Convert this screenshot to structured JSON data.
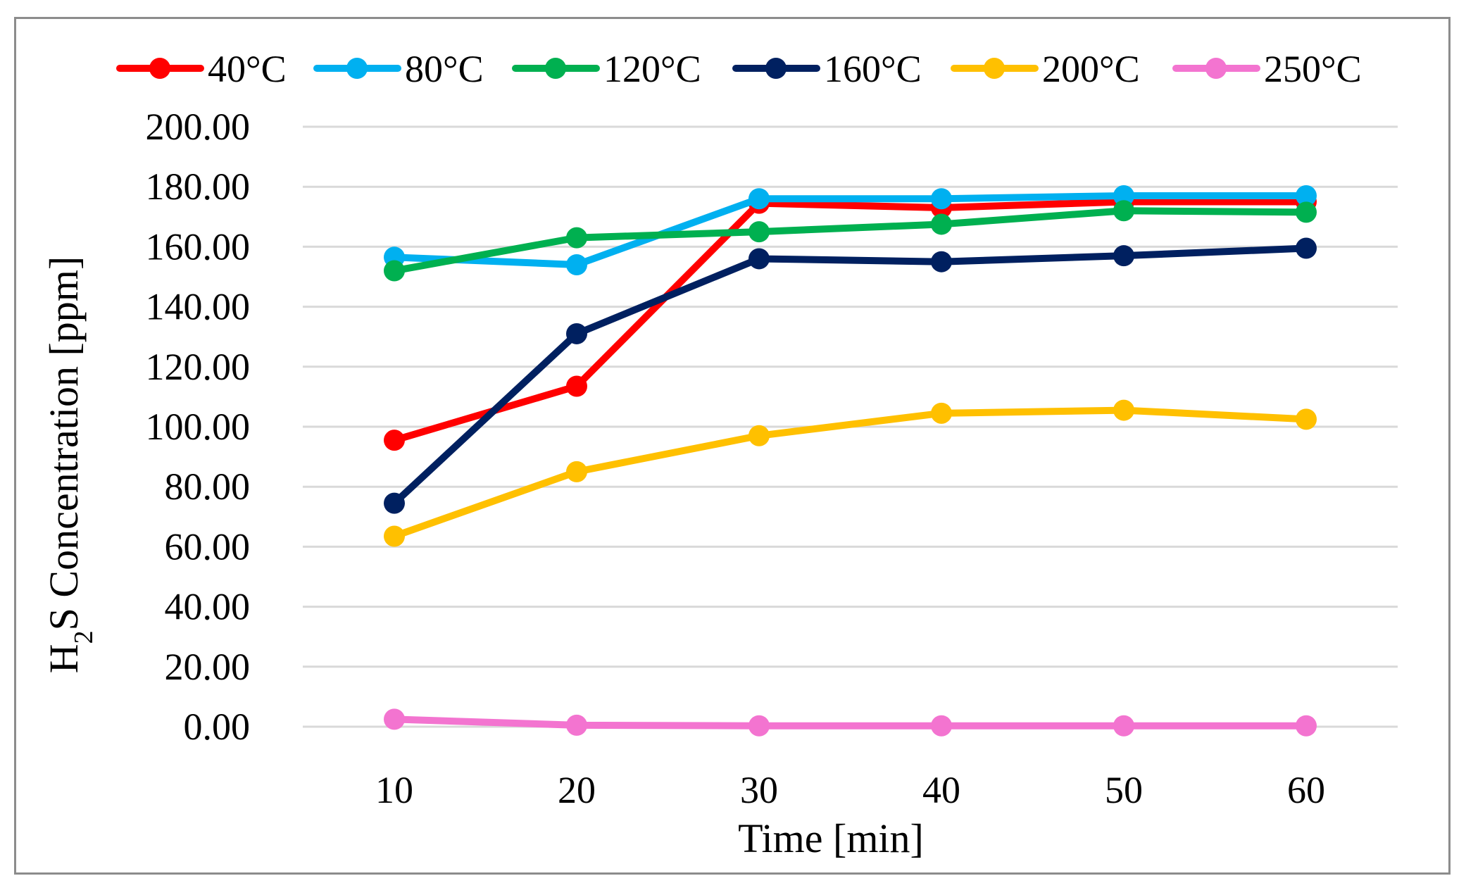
{
  "chart_data": {
    "type": "line",
    "title": "",
    "x": [
      10,
      20,
      30,
      40,
      50,
      60
    ],
    "x_tick_labels": [
      "10",
      "20",
      "30",
      "40",
      "50",
      "60"
    ],
    "xlabel": "Time [min]",
    "ylabel_main": "H",
    "ylabel_sub": "2",
    "ylabel_rest": "S Concentration [ppm]",
    "ylim": [
      0,
      200
    ],
    "y_ticks": [
      0,
      20,
      40,
      60,
      80,
      100,
      120,
      140,
      160,
      180,
      200
    ],
    "y_tick_labels": [
      "0.00",
      "20.00",
      "40.00",
      "60.00",
      "80.00",
      "100.00",
      "120.00",
      "140.00",
      "160.00",
      "180.00",
      "200.00"
    ],
    "grid": true,
    "legend_position": "top",
    "series": [
      {
        "name": "40°C",
        "color": "#ff0000",
        "values": [
          95.5,
          113.5,
          174.5,
          173,
          175,
          175
        ]
      },
      {
        "name": "80°C",
        "color": "#00b0f0",
        "values": [
          156.5,
          154,
          176,
          176,
          177,
          177
        ]
      },
      {
        "name": "120°C",
        "color": "#00b050",
        "values": [
          152,
          163,
          165,
          167.5,
          172,
          171.5
        ]
      },
      {
        "name": "160°C",
        "color": "#002060",
        "values": [
          74.5,
          131,
          156,
          155,
          157,
          159.5
        ]
      },
      {
        "name": "200°C",
        "color": "#ffc000",
        "values": [
          63.5,
          85,
          97,
          104.5,
          105.5,
          102.5
        ]
      },
      {
        "name": "250°C",
        "color": "#f374d0",
        "values": [
          2.5,
          0.5,
          0.3,
          0.3,
          0.3,
          0.3
        ]
      }
    ]
  }
}
